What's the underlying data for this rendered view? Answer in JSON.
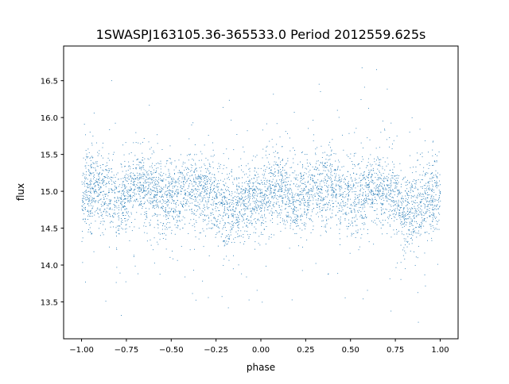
{
  "chart_data": {
    "type": "scatter",
    "title": "1SWASPJ163105.36-365533.0 Period 2012559.625s",
    "xlabel": "phase",
    "ylabel": "flux",
    "xlim": [
      -1.1,
      1.1
    ],
    "ylim": [
      13.0,
      16.97
    ],
    "xticks": [
      -1.0,
      -0.75,
      -0.5,
      -0.25,
      0.0,
      0.25,
      0.5,
      0.75,
      1.0
    ],
    "xtick_labels": [
      "−1.00",
      "−0.75",
      "−0.50",
      "−0.25",
      "0.00",
      "0.25",
      "0.50",
      "0.75",
      "1.00"
    ],
    "yticks": [
      13.5,
      14.0,
      14.5,
      15.0,
      15.5,
      16.0,
      16.5
    ],
    "ytick_labels": [
      "13.5",
      "14.0",
      "14.5",
      "15.0",
      "15.5",
      "16.0",
      "16.5"
    ],
    "grid": false,
    "marker_color": "#1f77b4",
    "binned_profile": {
      "phase": [
        -1.0,
        -0.95,
        -0.9,
        -0.85,
        -0.8,
        -0.75,
        -0.7,
        -0.65,
        -0.6,
        -0.55,
        -0.5,
        -0.45,
        -0.4,
        -0.35,
        -0.3,
        -0.25,
        -0.2,
        -0.15,
        -0.1,
        -0.05,
        0.0,
        0.05,
        0.1,
        0.15,
        0.2,
        0.25,
        0.3,
        0.35,
        0.4,
        0.45,
        0.5,
        0.55,
        0.6,
        0.65,
        0.7,
        0.75,
        0.8,
        0.85,
        0.9,
        0.95,
        1.0
      ],
      "median_flux": [
        14.95,
        15.0,
        15.05,
        15.0,
        14.85,
        14.95,
        15.1,
        15.05,
        15.1,
        14.9,
        14.95,
        14.9,
        15.1,
        15.0,
        15.0,
        14.9,
        14.75,
        14.7,
        14.85,
        14.9,
        14.95,
        15.0,
        15.05,
        15.0,
        14.85,
        14.95,
        15.1,
        15.05,
        15.1,
        14.9,
        14.95,
        14.9,
        15.1,
        15.0,
        15.0,
        14.9,
        14.75,
        14.7,
        14.85,
        14.9,
        14.95
      ],
      "flux_spread": 0.25,
      "flux_min": 13.2,
      "flux_max": 16.8
    }
  }
}
